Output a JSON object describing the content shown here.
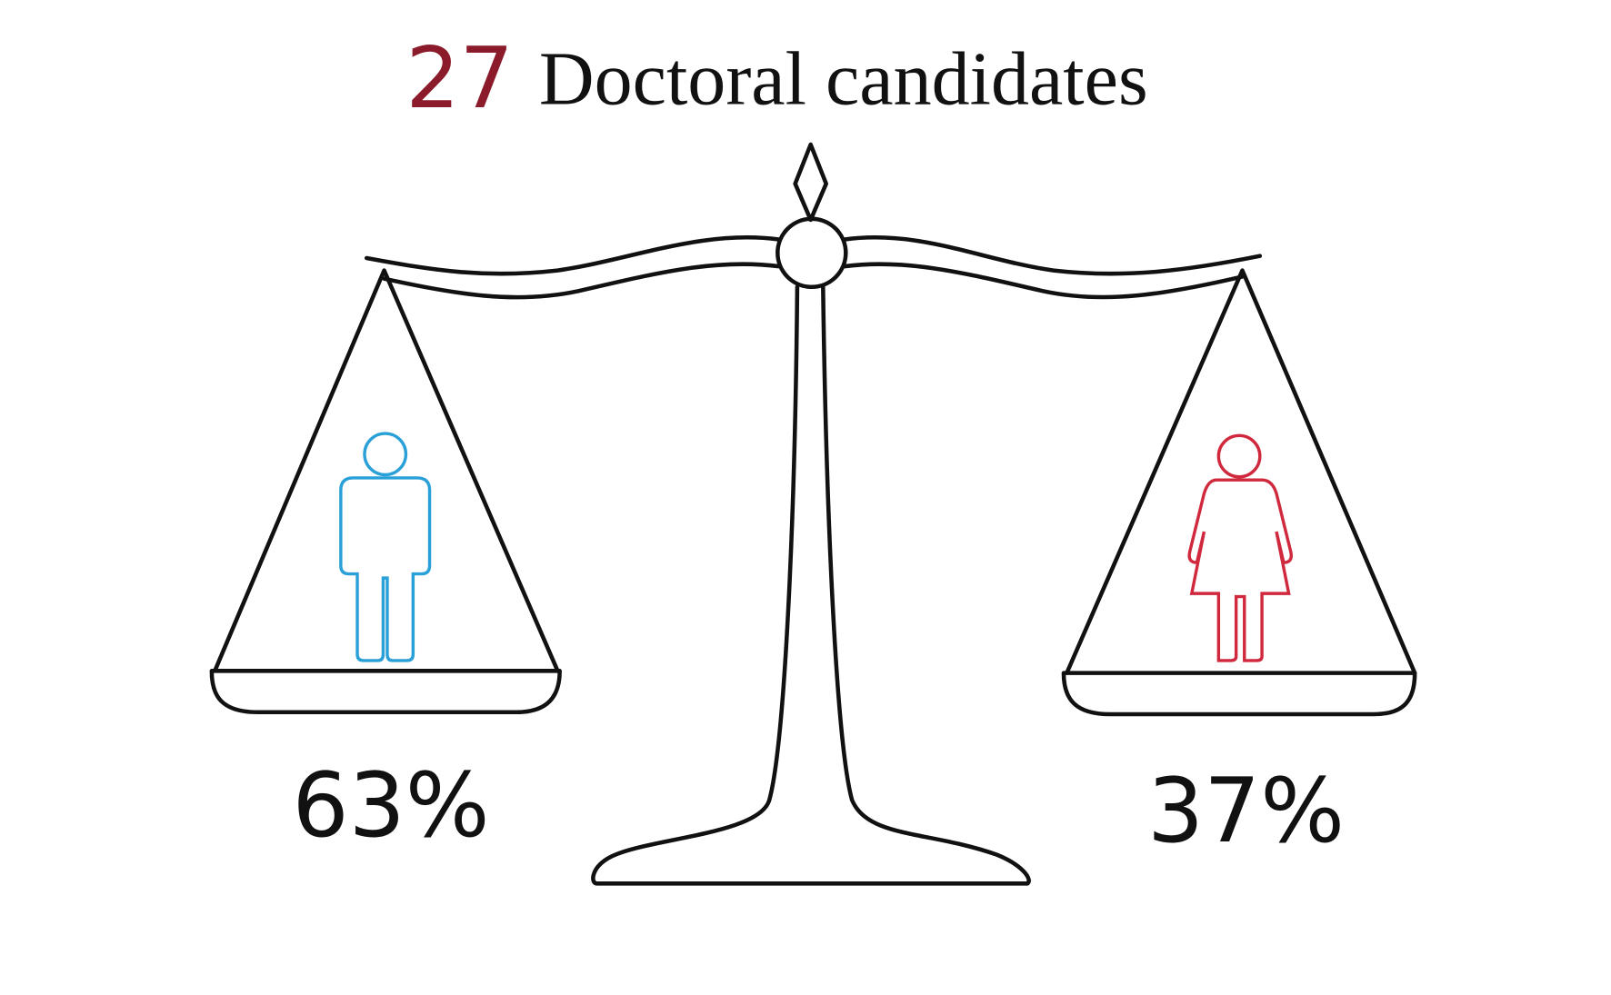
{
  "header": {
    "count": "27",
    "title": "Doctoral candidates"
  },
  "scale": {
    "left": {
      "label": "63%"
    },
    "right": {
      "label": "37%"
    }
  }
}
